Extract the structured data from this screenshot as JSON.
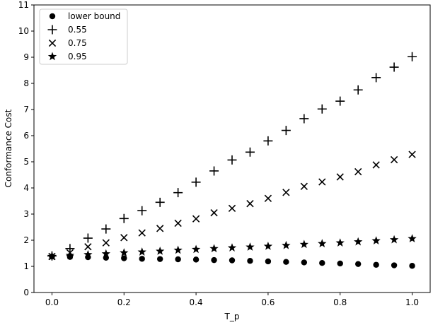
{
  "chart_data": {
    "type": "scatter",
    "title": "",
    "xlabel": "T_p",
    "ylabel": "Conformance Cost",
    "xlim": [
      -0.05,
      1.05
    ],
    "ylim": [
      0,
      11
    ],
    "xticks": [
      "0.0",
      "0.2",
      "0.4",
      "0.6",
      "0.8",
      "1.0"
    ],
    "yticks": [
      "0",
      "1",
      "2",
      "3",
      "4",
      "5",
      "6",
      "7",
      "8",
      "9",
      "10",
      "11"
    ],
    "grid": false,
    "legend_position": "top-left",
    "x": [
      0.0,
      0.05,
      0.1,
      0.15,
      0.2,
      0.25,
      0.3,
      0.35,
      0.4,
      0.45,
      0.5,
      0.55,
      0.6,
      0.65,
      0.7,
      0.75,
      0.8,
      0.85,
      0.9,
      0.95,
      1.0
    ],
    "series": [
      {
        "name": "lower bound",
        "marker": "circle",
        "color": "#000000",
        "values": [
          1.38,
          1.36,
          1.35,
          1.33,
          1.31,
          1.29,
          1.28,
          1.27,
          1.26,
          1.24,
          1.23,
          1.21,
          1.19,
          1.17,
          1.15,
          1.13,
          1.11,
          1.09,
          1.06,
          1.04,
          1.02
        ]
      },
      {
        "name": "0.55",
        "marker": "plus",
        "color": "#000000",
        "values": [
          1.4,
          1.68,
          2.08,
          2.43,
          2.83,
          3.13,
          3.45,
          3.82,
          4.22,
          4.65,
          5.07,
          5.37,
          5.8,
          6.2,
          6.65,
          7.02,
          7.32,
          7.75,
          8.22,
          8.62,
          9.02
        ]
      },
      {
        "name": "0.75",
        "marker": "x",
        "color": "#000000",
        "values": [
          1.38,
          1.52,
          1.75,
          1.9,
          2.1,
          2.28,
          2.45,
          2.65,
          2.82,
          3.05,
          3.22,
          3.4,
          3.6,
          3.83,
          4.06,
          4.23,
          4.42,
          4.62,
          4.88,
          5.08,
          5.28
        ]
      },
      {
        "name": "0.95",
        "marker": "star",
        "color": "#000000",
        "values": [
          1.38,
          1.42,
          1.45,
          1.48,
          1.52,
          1.55,
          1.58,
          1.62,
          1.65,
          1.68,
          1.71,
          1.74,
          1.77,
          1.8,
          1.84,
          1.87,
          1.9,
          1.94,
          1.98,
          2.02,
          2.06
        ]
      }
    ]
  }
}
